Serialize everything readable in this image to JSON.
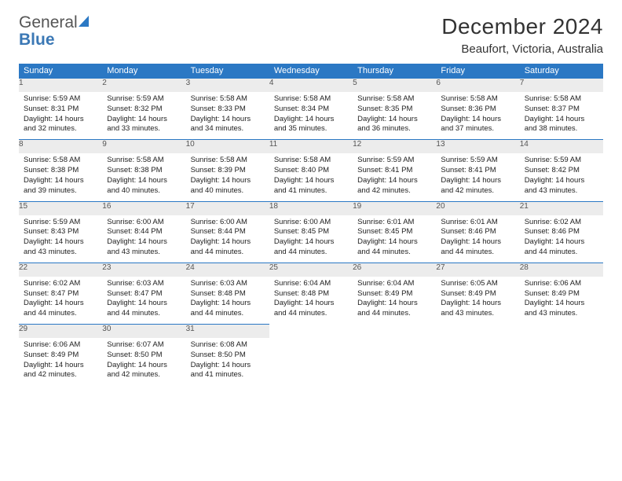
{
  "brand": {
    "word1": "General",
    "word2": "Blue",
    "sail_color": "#2b78c4"
  },
  "title": "December 2024",
  "location": "Beaufort, Victoria, Australia",
  "header_bg": "#2b78c4",
  "daynum_bg": "#ececec",
  "weekdays": [
    "Sunday",
    "Monday",
    "Tuesday",
    "Wednesday",
    "Thursday",
    "Friday",
    "Saturday"
  ],
  "weeks": [
    [
      {
        "n": "1",
        "sr": "Sunrise: 5:59 AM",
        "ss": "Sunset: 8:31 PM",
        "d1": "Daylight: 14 hours",
        "d2": "and 32 minutes."
      },
      {
        "n": "2",
        "sr": "Sunrise: 5:59 AM",
        "ss": "Sunset: 8:32 PM",
        "d1": "Daylight: 14 hours",
        "d2": "and 33 minutes."
      },
      {
        "n": "3",
        "sr": "Sunrise: 5:58 AM",
        "ss": "Sunset: 8:33 PM",
        "d1": "Daylight: 14 hours",
        "d2": "and 34 minutes."
      },
      {
        "n": "4",
        "sr": "Sunrise: 5:58 AM",
        "ss": "Sunset: 8:34 PM",
        "d1": "Daylight: 14 hours",
        "d2": "and 35 minutes."
      },
      {
        "n": "5",
        "sr": "Sunrise: 5:58 AM",
        "ss": "Sunset: 8:35 PM",
        "d1": "Daylight: 14 hours",
        "d2": "and 36 minutes."
      },
      {
        "n": "6",
        "sr": "Sunrise: 5:58 AM",
        "ss": "Sunset: 8:36 PM",
        "d1": "Daylight: 14 hours",
        "d2": "and 37 minutes."
      },
      {
        "n": "7",
        "sr": "Sunrise: 5:58 AM",
        "ss": "Sunset: 8:37 PM",
        "d1": "Daylight: 14 hours",
        "d2": "and 38 minutes."
      }
    ],
    [
      {
        "n": "8",
        "sr": "Sunrise: 5:58 AM",
        "ss": "Sunset: 8:38 PM",
        "d1": "Daylight: 14 hours",
        "d2": "and 39 minutes."
      },
      {
        "n": "9",
        "sr": "Sunrise: 5:58 AM",
        "ss": "Sunset: 8:38 PM",
        "d1": "Daylight: 14 hours",
        "d2": "and 40 minutes."
      },
      {
        "n": "10",
        "sr": "Sunrise: 5:58 AM",
        "ss": "Sunset: 8:39 PM",
        "d1": "Daylight: 14 hours",
        "d2": "and 40 minutes."
      },
      {
        "n": "11",
        "sr": "Sunrise: 5:58 AM",
        "ss": "Sunset: 8:40 PM",
        "d1": "Daylight: 14 hours",
        "d2": "and 41 minutes."
      },
      {
        "n": "12",
        "sr": "Sunrise: 5:59 AM",
        "ss": "Sunset: 8:41 PM",
        "d1": "Daylight: 14 hours",
        "d2": "and 42 minutes."
      },
      {
        "n": "13",
        "sr": "Sunrise: 5:59 AM",
        "ss": "Sunset: 8:41 PM",
        "d1": "Daylight: 14 hours",
        "d2": "and 42 minutes."
      },
      {
        "n": "14",
        "sr": "Sunrise: 5:59 AM",
        "ss": "Sunset: 8:42 PM",
        "d1": "Daylight: 14 hours",
        "d2": "and 43 minutes."
      }
    ],
    [
      {
        "n": "15",
        "sr": "Sunrise: 5:59 AM",
        "ss": "Sunset: 8:43 PM",
        "d1": "Daylight: 14 hours",
        "d2": "and 43 minutes."
      },
      {
        "n": "16",
        "sr": "Sunrise: 6:00 AM",
        "ss": "Sunset: 8:44 PM",
        "d1": "Daylight: 14 hours",
        "d2": "and 43 minutes."
      },
      {
        "n": "17",
        "sr": "Sunrise: 6:00 AM",
        "ss": "Sunset: 8:44 PM",
        "d1": "Daylight: 14 hours",
        "d2": "and 44 minutes."
      },
      {
        "n": "18",
        "sr": "Sunrise: 6:00 AM",
        "ss": "Sunset: 8:45 PM",
        "d1": "Daylight: 14 hours",
        "d2": "and 44 minutes."
      },
      {
        "n": "19",
        "sr": "Sunrise: 6:01 AM",
        "ss": "Sunset: 8:45 PM",
        "d1": "Daylight: 14 hours",
        "d2": "and 44 minutes."
      },
      {
        "n": "20",
        "sr": "Sunrise: 6:01 AM",
        "ss": "Sunset: 8:46 PM",
        "d1": "Daylight: 14 hours",
        "d2": "and 44 minutes."
      },
      {
        "n": "21",
        "sr": "Sunrise: 6:02 AM",
        "ss": "Sunset: 8:46 PM",
        "d1": "Daylight: 14 hours",
        "d2": "and 44 minutes."
      }
    ],
    [
      {
        "n": "22",
        "sr": "Sunrise: 6:02 AM",
        "ss": "Sunset: 8:47 PM",
        "d1": "Daylight: 14 hours",
        "d2": "and 44 minutes."
      },
      {
        "n": "23",
        "sr": "Sunrise: 6:03 AM",
        "ss": "Sunset: 8:47 PM",
        "d1": "Daylight: 14 hours",
        "d2": "and 44 minutes."
      },
      {
        "n": "24",
        "sr": "Sunrise: 6:03 AM",
        "ss": "Sunset: 8:48 PM",
        "d1": "Daylight: 14 hours",
        "d2": "and 44 minutes."
      },
      {
        "n": "25",
        "sr": "Sunrise: 6:04 AM",
        "ss": "Sunset: 8:48 PM",
        "d1": "Daylight: 14 hours",
        "d2": "and 44 minutes."
      },
      {
        "n": "26",
        "sr": "Sunrise: 6:04 AM",
        "ss": "Sunset: 8:49 PM",
        "d1": "Daylight: 14 hours",
        "d2": "and 44 minutes."
      },
      {
        "n": "27",
        "sr": "Sunrise: 6:05 AM",
        "ss": "Sunset: 8:49 PM",
        "d1": "Daylight: 14 hours",
        "d2": "and 43 minutes."
      },
      {
        "n": "28",
        "sr": "Sunrise: 6:06 AM",
        "ss": "Sunset: 8:49 PM",
        "d1": "Daylight: 14 hours",
        "d2": "and 43 minutes."
      }
    ],
    [
      {
        "n": "29",
        "sr": "Sunrise: 6:06 AM",
        "ss": "Sunset: 8:49 PM",
        "d1": "Daylight: 14 hours",
        "d2": "and 42 minutes."
      },
      {
        "n": "30",
        "sr": "Sunrise: 6:07 AM",
        "ss": "Sunset: 8:50 PM",
        "d1": "Daylight: 14 hours",
        "d2": "and 42 minutes."
      },
      {
        "n": "31",
        "sr": "Sunrise: 6:08 AM",
        "ss": "Sunset: 8:50 PM",
        "d1": "Daylight: 14 hours",
        "d2": "and 41 minutes."
      },
      null,
      null,
      null,
      null
    ]
  ]
}
